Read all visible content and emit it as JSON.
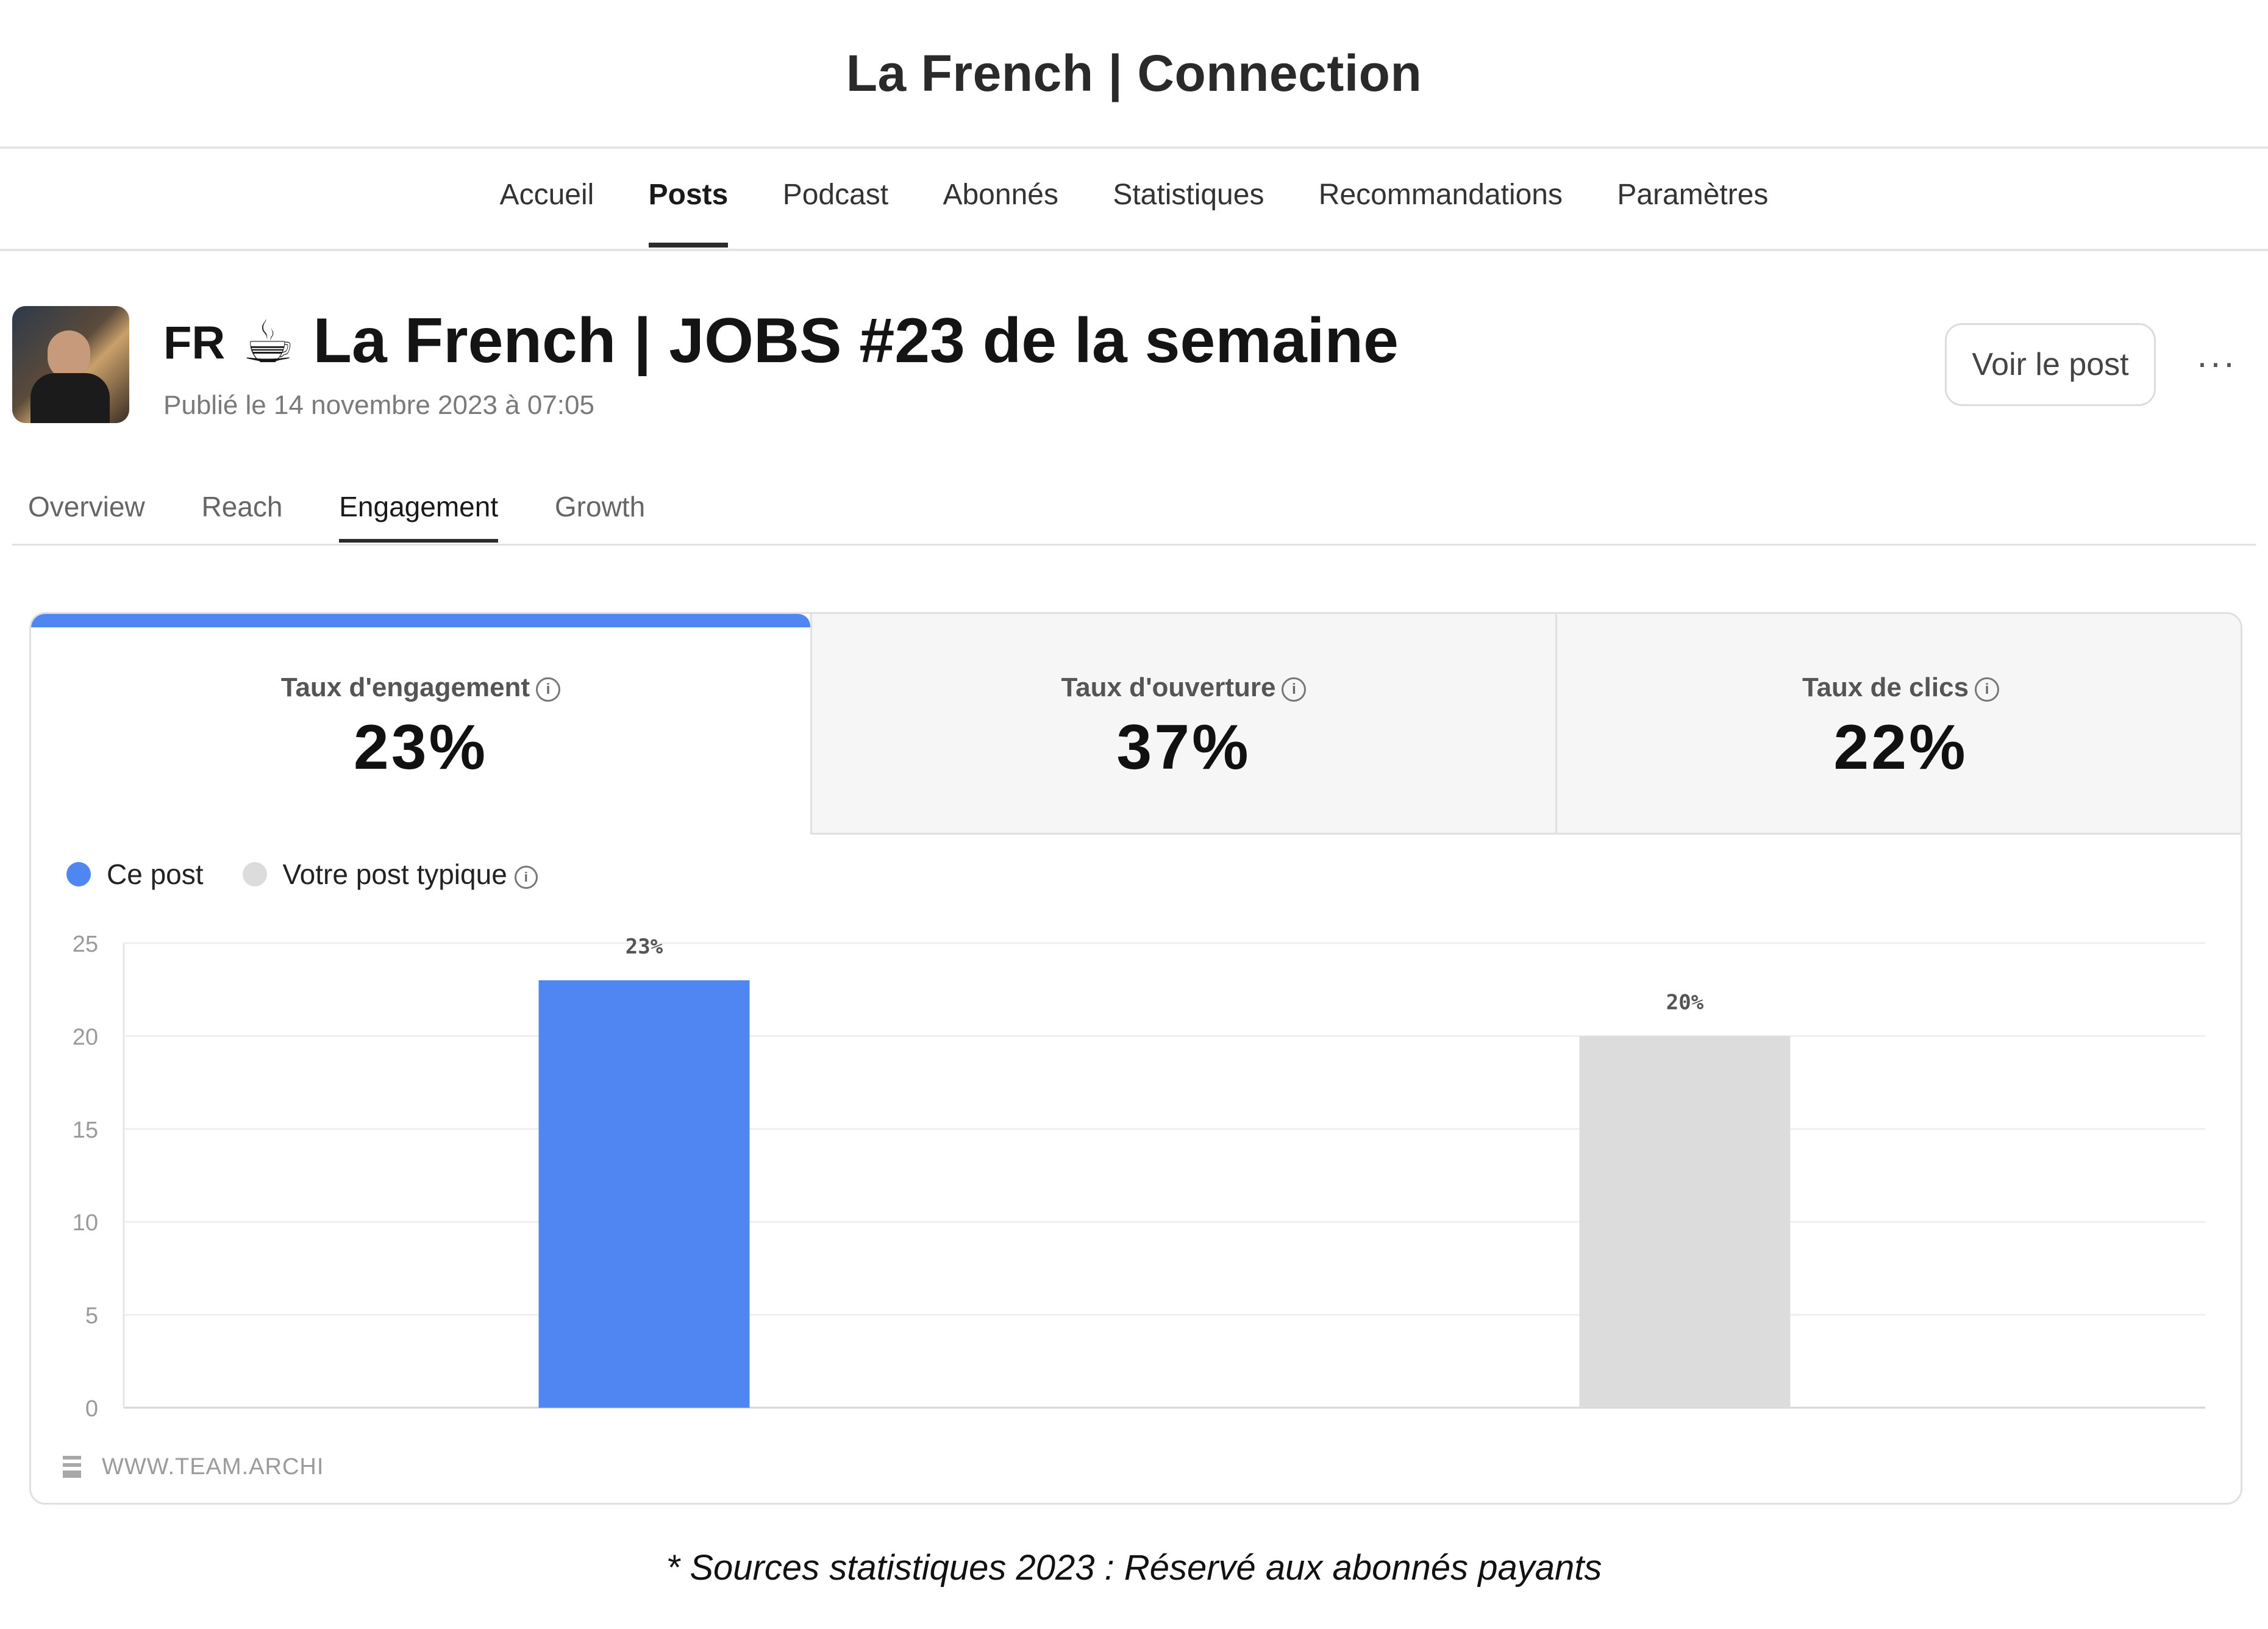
{
  "site": {
    "title": "La French | Connection"
  },
  "nav": {
    "items": [
      "Accueil",
      "Posts",
      "Podcast",
      "Abonnés",
      "Statistiques",
      "Recommandations",
      "Paramètres"
    ],
    "active": "Posts"
  },
  "post": {
    "lang": "FR",
    "emoji": "☕",
    "title": "La French | JOBS #23 de la semaine",
    "published": "Publié le 14 novembre 2023 à 07:05",
    "view_button": "Voir le post",
    "more": "···"
  },
  "tabs": {
    "items": [
      "Overview",
      "Reach",
      "Engagement",
      "Growth"
    ],
    "active": "Engagement"
  },
  "metrics": [
    {
      "label": "Taux d'engagement",
      "value": "23%"
    },
    {
      "label": "Taux d'ouverture",
      "value": "37%"
    },
    {
      "label": "Taux de clics",
      "value": "22%"
    }
  ],
  "legend": {
    "items": [
      {
        "label": "Ce post",
        "color": "#4f86f2"
      },
      {
        "label": "Votre post typique",
        "color": "#dcdcdc"
      }
    ],
    "info_icon": "info-icon"
  },
  "chart_data": {
    "type": "bar",
    "categories": [
      "Ce post",
      "Votre post typique"
    ],
    "values": [
      23,
      20
    ],
    "data_labels": [
      "23%",
      "20%"
    ],
    "colors": [
      "#4f86f2",
      "#dcdcdc"
    ],
    "ylim": [
      0,
      25
    ],
    "yticks": [
      "0",
      "5",
      "10",
      "15",
      "20",
      "25"
    ],
    "grid": true
  },
  "watermark": {
    "text": "WWW.TEAM.ARCHI",
    "icon": "menu-icon"
  },
  "footnote": "* Sources statistiques 2023 : Réservé aux abonnés payants"
}
